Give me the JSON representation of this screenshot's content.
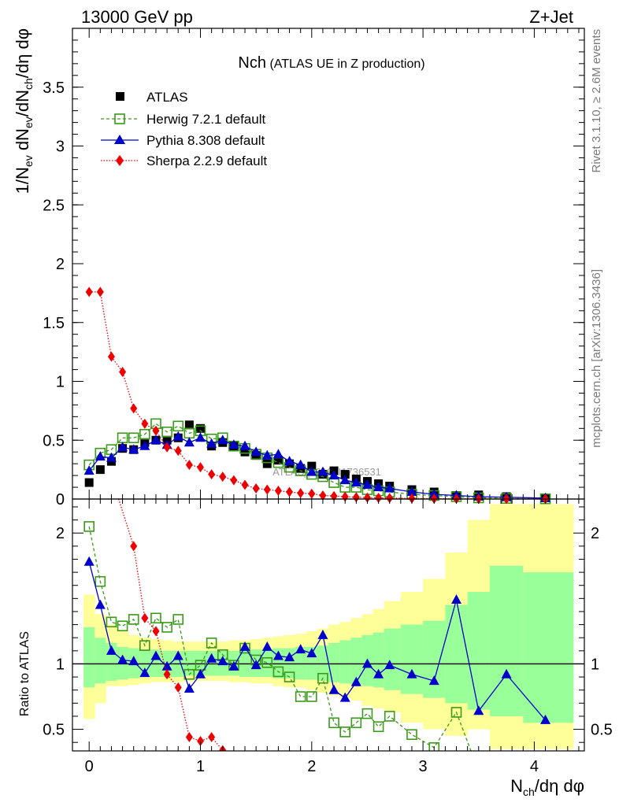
{
  "header": {
    "energy_label": "13000 GeV pp",
    "process_label": "Z+Jet",
    "plot_title_main": "Nch",
    "plot_title_sub": "(ATLAS UE in Z production)",
    "side_label_rivet": "Rivet 3.1.10, ≥ 2.6M events",
    "side_label_mcplots": "mcplots.cern.ch [arXiv:1306.3436]",
    "watermark": "ATLAS_2019_I1736531"
  },
  "colors": {
    "atlas": "#000000",
    "herwig": "#3a9a1a",
    "pythia": "#0000cc",
    "sherpa": "#ee0000",
    "band_outer": "#ffff99",
    "band_inner": "#99ff99"
  },
  "chart_data": [
    {
      "type": "scatter",
      "title": "Nch (ATLAS UE in Z production)",
      "xlabel": "N_ch/dη dφ",
      "ylabel": "1/N_ev dN_ev/dN_ch/dη dφ",
      "xlim": [
        -0.15,
        4.45
      ],
      "ylim": [
        0,
        4.0
      ],
      "yticks": [
        0,
        0.5,
        1,
        1.5,
        2,
        2.5,
        3,
        3.5
      ],
      "ytick_labels": [
        "0",
        "0.5",
        "1",
        "1.5",
        "2",
        "2.5",
        "3",
        "3.5"
      ],
      "legend": [
        "ATLAS",
        "Herwig 7.2.1 default",
        "Pythia 8.308 default",
        "Sherpa 2.2.9 default"
      ],
      "legend_position": "top-left",
      "series": [
        {
          "name": "ATLAS",
          "x": [
            0,
            0.1,
            0.2,
            0.3,
            0.4,
            0.5,
            0.6,
            0.7,
            0.8,
            0.9,
            1.0,
            1.1,
            1.2,
            1.3,
            1.4,
            1.5,
            1.6,
            1.7,
            1.8,
            1.9,
            2.0,
            2.1,
            2.2,
            2.3,
            2.4,
            2.5,
            2.6,
            2.7,
            2.9,
            3.1,
            3.3,
            3.5,
            3.75,
            4.1
          ],
          "y": [
            0.14,
            0.25,
            0.32,
            0.43,
            0.42,
            0.48,
            0.5,
            0.5,
            0.52,
            0.63,
            0.6,
            0.45,
            0.48,
            0.45,
            0.4,
            0.37,
            0.3,
            0.33,
            0.3,
            0.26,
            0.28,
            0.21,
            0.24,
            0.21,
            0.17,
            0.15,
            0.13,
            0.11,
            0.08,
            0.06,
            0.03,
            0.035,
            0.02,
            0.01
          ]
        },
        {
          "name": "Herwig 7.2.1 default",
          "x": [
            0,
            0.1,
            0.2,
            0.3,
            0.4,
            0.5,
            0.6,
            0.7,
            0.8,
            0.9,
            1.0,
            1.1,
            1.2,
            1.3,
            1.4,
            1.5,
            1.6,
            1.7,
            1.8,
            1.9,
            2.0,
            2.1,
            2.2,
            2.3,
            2.4,
            2.5,
            2.6,
            2.7,
            2.9,
            3.1,
            3.3,
            3.5,
            3.75,
            4.1
          ],
          "y": [
            0.29,
            0.39,
            0.42,
            0.52,
            0.52,
            0.55,
            0.64,
            0.57,
            0.62,
            0.56,
            0.58,
            0.51,
            0.52,
            0.45,
            0.43,
            0.38,
            0.35,
            0.31,
            0.27,
            0.24,
            0.21,
            0.19,
            0.14,
            0.1,
            0.1,
            0.08,
            0.07,
            0.06,
            0.04,
            0.03,
            0.02,
            0.01,
            0.005,
            0.002
          ]
        },
        {
          "name": "Pythia 8.308 default",
          "x": [
            0,
            0.1,
            0.2,
            0.3,
            0.4,
            0.5,
            0.6,
            0.7,
            0.8,
            0.9,
            1.0,
            1.1,
            1.2,
            1.3,
            1.4,
            1.5,
            1.6,
            1.7,
            1.8,
            1.9,
            2.0,
            2.1,
            2.2,
            2.3,
            2.4,
            2.5,
            2.6,
            2.7,
            2.9,
            3.1,
            3.3,
            3.5,
            3.75,
            4.1
          ],
          "y": [
            0.24,
            0.36,
            0.35,
            0.44,
            0.42,
            0.45,
            0.5,
            0.46,
            0.53,
            0.48,
            0.52,
            0.47,
            0.5,
            0.46,
            0.45,
            0.4,
            0.37,
            0.38,
            0.32,
            0.29,
            0.23,
            0.23,
            0.2,
            0.16,
            0.14,
            0.12,
            0.1,
            0.09,
            0.06,
            0.04,
            0.03,
            0.02,
            0.015,
            0.008
          ]
        },
        {
          "name": "Sherpa 2.2.9 default",
          "x": [
            0,
            0.1,
            0.2,
            0.3,
            0.4,
            0.5,
            0.6,
            0.7,
            0.8,
            0.9,
            1.0,
            1.1,
            1.2,
            1.3,
            1.4,
            1.5,
            1.6,
            1.7,
            1.8,
            1.9,
            2.0,
            2.1,
            2.2,
            2.3,
            2.4,
            2.5,
            2.6,
            2.7,
            2.9,
            3.1,
            3.3,
            3.5,
            3.75,
            4.1
          ],
          "y": [
            1.76,
            1.76,
            1.21,
            1.08,
            0.77,
            0.64,
            0.58,
            0.44,
            0.41,
            0.29,
            0.27,
            0.21,
            0.19,
            0.16,
            0.12,
            0.09,
            0.08,
            0.07,
            0.06,
            0.05,
            0.045,
            0.03,
            0.025,
            0.02,
            0.015,
            0.012,
            0.01,
            0.008,
            0.005,
            0.003,
            0.002,
            0.001,
            0.0005,
            0.0002
          ]
        }
      ]
    },
    {
      "type": "line",
      "xlabel": "N_ch/dη dφ",
      "ylabel": "Ratio to ATLAS",
      "xlim": [
        -0.15,
        4.45
      ],
      "ylim": [
        0.335,
        2.26
      ],
      "yticks": [
        0.5,
        1,
        2
      ],
      "ytick_labels": [
        "0.5",
        "1",
        "2"
      ],
      "xticks": [
        0,
        1,
        2,
        3,
        4
      ],
      "xtick_labels": [
        "0",
        "1",
        "2",
        "3",
        "4"
      ],
      "reference_line": 1,
      "bands": {
        "edges": [
          -0.05,
          0.05,
          0.15,
          0.25,
          0.35,
          0.45,
          0.55,
          0.65,
          0.75,
          0.85,
          0.95,
          1.05,
          1.15,
          1.25,
          1.35,
          1.45,
          1.55,
          1.65,
          1.75,
          1.85,
          1.95,
          2.05,
          2.15,
          2.25,
          2.35,
          2.45,
          2.55,
          2.65,
          2.8,
          3.0,
          3.2,
          3.4,
          3.6,
          3.9,
          4.35
        ],
        "outer_lo": [
          0.58,
          0.7,
          0.83,
          0.83,
          0.84,
          0.85,
          0.86,
          0.86,
          0.86,
          0.87,
          0.87,
          0.87,
          0.87,
          0.86,
          0.86,
          0.85,
          0.85,
          0.83,
          0.82,
          0.82,
          0.8,
          0.78,
          0.76,
          0.74,
          0.72,
          0.68,
          0.66,
          0.63,
          0.55,
          0.5,
          0.45,
          0.5,
          0.35,
          0.35,
          0.35
        ],
        "outer_hi": [
          1.53,
          1.38,
          1.3,
          1.25,
          1.22,
          1.2,
          1.19,
          1.18,
          1.17,
          1.17,
          1.17,
          1.17,
          1.17,
          1.18,
          1.18,
          1.19,
          1.2,
          1.21,
          1.22,
          1.23,
          1.25,
          1.27,
          1.3,
          1.32,
          1.35,
          1.38,
          1.42,
          1.48,
          1.55,
          1.65,
          1.85,
          2.1,
          2.22,
          2.22,
          1.95
        ],
        "inner_lo": [
          0.82,
          0.85,
          0.87,
          0.88,
          0.89,
          0.9,
          0.9,
          0.9,
          0.9,
          0.91,
          0.91,
          0.91,
          0.91,
          0.91,
          0.9,
          0.9,
          0.9,
          0.89,
          0.89,
          0.88,
          0.88,
          0.87,
          0.86,
          0.85,
          0.84,
          0.83,
          0.82,
          0.8,
          0.77,
          0.74,
          0.7,
          0.65,
          0.6,
          0.55,
          0.55
        ],
        "inner_hi": [
          1.28,
          1.2,
          1.16,
          1.13,
          1.12,
          1.11,
          1.11,
          1.1,
          1.1,
          1.1,
          1.1,
          1.1,
          1.1,
          1.1,
          1.11,
          1.11,
          1.11,
          1.12,
          1.12,
          1.13,
          1.13,
          1.14,
          1.16,
          1.18,
          1.2,
          1.22,
          1.24,
          1.27,
          1.3,
          1.33,
          1.45,
          1.55,
          1.75,
          1.7,
          1.55
        ]
      },
      "series": [
        {
          "name": "Herwig 7.2.1 default",
          "x": [
            0,
            0.1,
            0.2,
            0.3,
            0.4,
            0.5,
            0.6,
            0.7,
            0.8,
            0.9,
            1.0,
            1.1,
            1.2,
            1.3,
            1.4,
            1.5,
            1.6,
            1.7,
            1.8,
            1.9,
            2.0,
            2.1,
            2.2,
            2.3,
            2.4,
            2.5,
            2.6,
            2.7,
            2.9,
            3.1,
            3.3,
            3.5
          ],
          "y": [
            2.05,
            1.63,
            1.32,
            1.29,
            1.34,
            1.14,
            1.35,
            1.28,
            1.34,
            0.92,
            0.99,
            1.16,
            1.07,
            0.99,
            1.12,
            1.03,
            1.01,
            0.94,
            0.9,
            0.75,
            0.75,
            0.89,
            0.55,
            0.48,
            0.55,
            0.62,
            0.52,
            0.6,
            0.46,
            0.36,
            0.63,
            0.18
          ]
        },
        {
          "name": "Pythia 8.308 default",
          "x": [
            0,
            0.1,
            0.2,
            0.3,
            0.4,
            0.5,
            0.6,
            0.7,
            0.8,
            0.9,
            1.0,
            1.1,
            1.2,
            1.3,
            1.4,
            1.5,
            1.6,
            1.7,
            1.8,
            1.9,
            2.0,
            2.1,
            2.2,
            2.3,
            2.4,
            2.5,
            2.6,
            2.7,
            2.9,
            3.1,
            3.3,
            3.5,
            3.75,
            4.1
          ],
          "y": [
            1.78,
            1.45,
            1.1,
            1.03,
            1.02,
            0.93,
            1.06,
            0.98,
            1.06,
            0.81,
            0.92,
            1.04,
            1.02,
            0.98,
            1.13,
            0.99,
            1.13,
            1.06,
            1.05,
            1.11,
            1.08,
            1.22,
            0.8,
            0.74,
            0.86,
            1.0,
            0.92,
            0.99,
            0.92,
            0.87,
            1.49,
            0.64,
            0.92,
            0.57
          ]
        },
        {
          "name": "Sherpa 2.2.9 default",
          "x": [
            0.25,
            0.4,
            0.5,
            0.6,
            0.7,
            0.8,
            0.9,
            1.0,
            1.1,
            1.2
          ],
          "y": [
            2.3,
            1.9,
            1.35,
            1.25,
            0.92,
            0.82,
            0.44,
            0.41,
            0.44,
            0.34
          ]
        }
      ]
    }
  ]
}
